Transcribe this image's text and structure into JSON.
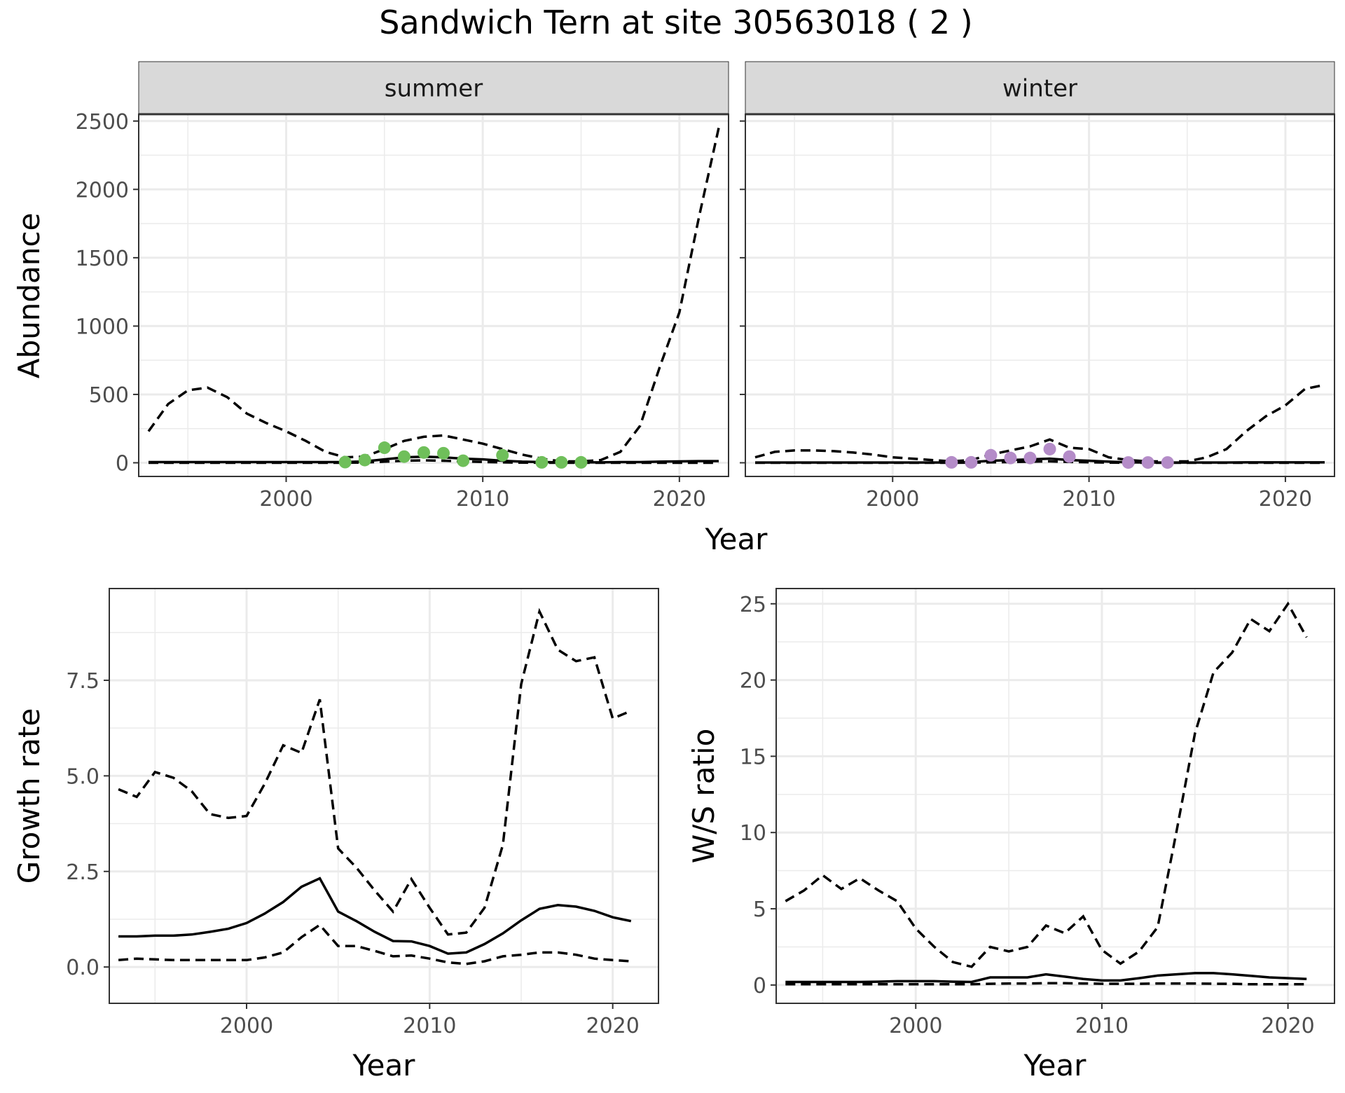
{
  "title": "Sandwich Tern at site 30563018 ( 2 )",
  "colors": {
    "summer_points": "#6fbf5a",
    "winter_points": "#b48cc8",
    "lines": "#000000"
  },
  "chart_data": [
    {
      "type": "line",
      "panel": "summer",
      "strip_label": "summer",
      "ylabel": "Abundance",
      "xlabel": "Year",
      "xlim": [
        1992.5,
        2022.5
      ],
      "ylim": [
        -100,
        2550
      ],
      "x_ticks": [
        2000,
        2010,
        2020
      ],
      "y_ticks": [
        0,
        500,
        1000,
        1500,
        2000,
        2500
      ],
      "x": [
        1993,
        1994,
        1995,
        1996,
        1997,
        1998,
        1999,
        2000,
        2001,
        2002,
        2003,
        2004,
        2005,
        2006,
        2007,
        2008,
        2009,
        2010,
        2011,
        2012,
        2013,
        2014,
        2015,
        2016,
        2017,
        2018,
        2019,
        2020,
        2021,
        2022
      ],
      "series": [
        {
          "role": "upper",
          "style": "dashed",
          "values": [
            230,
            430,
            530,
            550,
            480,
            360,
            290,
            230,
            160,
            80,
            40,
            45,
            100,
            160,
            190,
            200,
            170,
            140,
            100,
            60,
            30,
            10,
            10,
            20,
            80,
            270,
            700,
            1100,
            1800,
            2450
          ]
        },
        {
          "role": "mean",
          "style": "solid",
          "values": [
            5,
            5,
            5,
            5,
            5,
            5,
            5,
            5,
            5,
            5,
            5,
            10,
            25,
            40,
            45,
            40,
            30,
            25,
            15,
            8,
            5,
            3,
            3,
            3,
            5,
            5,
            8,
            10,
            12,
            12
          ]
        },
        {
          "role": "lower",
          "style": "dashed",
          "values": [
            0,
            0,
            0,
            0,
            0,
            0,
            0,
            0,
            0,
            0,
            0,
            2,
            8,
            15,
            18,
            15,
            10,
            6,
            3,
            1,
            0,
            0,
            0,
            0,
            0,
            0,
            0,
            0,
            0,
            0
          ]
        }
      ],
      "points": {
        "x": [
          2003,
          2004,
          2005,
          2006,
          2007,
          2008,
          2009,
          2011,
          2013,
          2014,
          2015
        ],
        "y": [
          5,
          20,
          110,
          45,
          75,
          70,
          15,
          55,
          3,
          3,
          3
        ]
      }
    },
    {
      "type": "line",
      "panel": "winter",
      "strip_label": "winter",
      "ylabel": "",
      "xlabel": "Year",
      "xlim": [
        1992.5,
        2022.5
      ],
      "ylim": [
        -100,
        2550
      ],
      "x_ticks": [
        2000,
        2010,
        2020
      ],
      "y_ticks": [
        0,
        500,
        1000,
        1500,
        2000,
        2500
      ],
      "x": [
        1993,
        1994,
        1995,
        1996,
        1997,
        1998,
        1999,
        2000,
        2001,
        2002,
        2003,
        2004,
        2005,
        2006,
        2007,
        2008,
        2009,
        2010,
        2011,
        2012,
        2013,
        2014,
        2015,
        2016,
        2017,
        2018,
        2019,
        2020,
        2021,
        2022
      ],
      "series": [
        {
          "role": "upper",
          "style": "dashed",
          "values": [
            40,
            80,
            90,
            90,
            85,
            75,
            60,
            40,
            30,
            20,
            10,
            20,
            60,
            90,
            120,
            170,
            110,
            100,
            40,
            20,
            10,
            10,
            10,
            40,
            100,
            230,
            340,
            420,
            540,
            570
          ]
        },
        {
          "role": "mean",
          "style": "solid",
          "values": [
            2,
            2,
            2,
            2,
            2,
            2,
            2,
            2,
            2,
            2,
            2,
            5,
            15,
            20,
            25,
            30,
            20,
            15,
            8,
            3,
            2,
            2,
            2,
            2,
            2,
            3,
            3,
            3,
            3,
            3
          ]
        },
        {
          "role": "lower",
          "style": "dashed",
          "values": [
            0,
            0,
            0,
            0,
            0,
            0,
            0,
            0,
            0,
            0,
            0,
            1,
            3,
            5,
            8,
            10,
            6,
            4,
            1,
            0,
            0,
            0,
            0,
            0,
            0,
            0,
            0,
            0,
            0,
            0
          ]
        }
      ],
      "points": {
        "x": [
          2003,
          2004,
          2005,
          2006,
          2007,
          2008,
          2009,
          2012,
          2013,
          2014
        ],
        "y": [
          3,
          3,
          55,
          35,
          35,
          100,
          45,
          2,
          2,
          2
        ]
      }
    },
    {
      "type": "line",
      "panel": "growth",
      "ylabel": "Growth rate",
      "xlabel": "Year",
      "xlim": [
        1992.5,
        2022.5
      ],
      "ylim": [
        -0.95,
        9.9
      ],
      "x_ticks": [
        2000,
        2010,
        2020
      ],
      "y_ticks": [
        0.0,
        2.5,
        5.0,
        7.5
      ],
      "y_tick_labels": [
        "0.0",
        "2.5",
        "5.0",
        "7.5"
      ],
      "x": [
        1993,
        1994,
        1995,
        1996,
        1997,
        1998,
        1999,
        2000,
        2001,
        2002,
        2003,
        2004,
        2005,
        2006,
        2007,
        2008,
        2009,
        2010,
        2011,
        2012,
        2013,
        2014,
        2015,
        2016,
        2017,
        2018,
        2019,
        2020,
        2021
      ],
      "series": [
        {
          "role": "upper",
          "style": "dashed",
          "values": [
            4.65,
            4.45,
            5.1,
            4.95,
            4.6,
            4.0,
            3.9,
            3.95,
            4.8,
            5.8,
            5.6,
            7.0,
            3.1,
            2.6,
            2.0,
            1.45,
            2.3,
            1.55,
            0.85,
            0.9,
            1.55,
            3.2,
            7.4,
            9.3,
            8.3,
            8.0,
            8.1,
            6.5,
            6.7
          ]
        },
        {
          "role": "mean",
          "style": "solid",
          "values": [
            0.8,
            0.8,
            0.82,
            0.82,
            0.85,
            0.92,
            1.0,
            1.15,
            1.4,
            1.7,
            2.1,
            2.32,
            1.45,
            1.2,
            0.92,
            0.68,
            0.67,
            0.55,
            0.35,
            0.38,
            0.6,
            0.88,
            1.22,
            1.52,
            1.62,
            1.58,
            1.47,
            1.3,
            1.2
          ]
        },
        {
          "role": "lower",
          "style": "dashed",
          "values": [
            0.18,
            0.22,
            0.2,
            0.18,
            0.18,
            0.18,
            0.18,
            0.18,
            0.25,
            0.38,
            0.78,
            1.1,
            0.55,
            0.55,
            0.42,
            0.28,
            0.3,
            0.22,
            0.12,
            0.08,
            0.15,
            0.28,
            0.32,
            0.38,
            0.38,
            0.32,
            0.22,
            0.18,
            0.15
          ]
        }
      ]
    },
    {
      "type": "line",
      "panel": "ratio",
      "ylabel": "W/S ratio",
      "xlabel": "Year",
      "xlim": [
        1992.5,
        2022.5
      ],
      "ylim": [
        -1.2,
        26.0
      ],
      "x_ticks": [
        2000,
        2010,
        2020
      ],
      "y_ticks": [
        0,
        5,
        10,
        15,
        20,
        25
      ],
      "x": [
        1993,
        1994,
        1995,
        1996,
        1997,
        1998,
        1999,
        2000,
        2001,
        2002,
        2003,
        2004,
        2005,
        2006,
        2007,
        2008,
        2009,
        2010,
        2011,
        2012,
        2013,
        2014,
        2015,
        2016,
        2017,
        2018,
        2019,
        2020,
        2021
      ],
      "series": [
        {
          "role": "upper",
          "style": "dashed",
          "values": [
            5.5,
            6.2,
            7.2,
            6.3,
            7.0,
            6.2,
            5.5,
            3.7,
            2.5,
            1.5,
            1.2,
            2.5,
            2.2,
            2.5,
            3.9,
            3.4,
            4.5,
            2.3,
            1.4,
            2.2,
            3.8,
            10.0,
            16.5,
            20.5,
            21.8,
            24.0,
            23.2,
            25.0,
            22.8
          ]
        },
        {
          "role": "mean",
          "style": "solid",
          "values": [
            0.2,
            0.2,
            0.2,
            0.2,
            0.2,
            0.22,
            0.25,
            0.25,
            0.25,
            0.22,
            0.2,
            0.5,
            0.5,
            0.5,
            0.7,
            0.55,
            0.4,
            0.3,
            0.3,
            0.45,
            0.62,
            0.7,
            0.78,
            0.78,
            0.7,
            0.6,
            0.5,
            0.45,
            0.4
          ]
        },
        {
          "role": "lower",
          "style": "dashed",
          "values": [
            0.05,
            0.05,
            0.05,
            0.05,
            0.05,
            0.05,
            0.05,
            0.05,
            0.05,
            0.05,
            0.05,
            0.08,
            0.1,
            0.1,
            0.12,
            0.12,
            0.1,
            0.08,
            0.08,
            0.08,
            0.1,
            0.1,
            0.1,
            0.08,
            0.08,
            0.05,
            0.05,
            0.05,
            0.05
          ]
        }
      ]
    }
  ]
}
